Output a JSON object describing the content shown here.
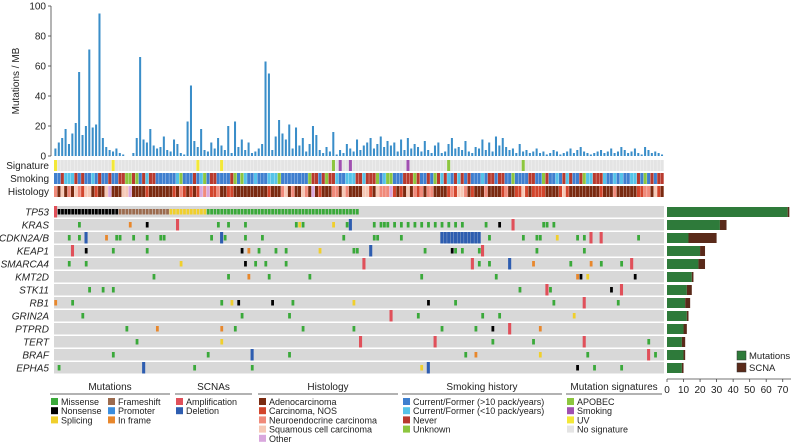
{
  "chart_data": {
    "type": "oncoprint",
    "n_samples": 180,
    "tmb": {
      "ylabel": "Mutations / MB",
      "ylim": [
        0,
        100
      ],
      "yticks": [
        0,
        20,
        40,
        60,
        80,
        100
      ],
      "values": [
        5,
        9,
        12,
        18,
        8,
        15,
        22,
        56,
        14,
        20,
        71,
        19,
        21,
        95,
        12,
        6,
        4,
        3,
        5,
        2,
        1,
        0,
        0,
        2,
        12,
        66,
        11,
        9,
        18,
        7,
        5,
        6,
        13,
        4,
        3,
        11,
        8,
        2,
        1,
        23,
        47,
        10,
        6,
        18,
        4,
        3,
        9,
        5,
        12,
        7,
        4,
        20,
        2,
        23,
        6,
        11,
        4,
        9,
        2,
        3,
        5,
        8,
        63,
        55,
        4,
        13,
        24,
        15,
        11,
        21,
        5,
        19,
        7,
        12,
        3,
        8,
        20,
        14,
        4,
        2,
        6,
        3,
        16,
        1,
        4,
        2,
        8,
        5,
        3,
        11,
        4,
        7,
        9,
        12,
        5,
        8,
        13,
        6,
        10,
        7,
        9,
        3,
        11,
        4,
        12,
        5,
        8,
        6,
        3,
        10,
        4,
        2,
        7,
        9,
        2,
        3,
        8,
        12,
        5,
        6,
        4,
        10,
        3,
        2,
        6,
        5,
        11,
        4,
        9,
        3,
        13,
        7,
        12,
        6,
        4,
        5,
        2,
        8,
        3,
        4,
        2,
        3,
        5,
        2,
        3,
        1,
        2,
        4,
        3,
        1,
        2,
        3,
        5,
        2,
        4,
        6,
        3,
        2,
        1,
        2,
        3,
        4,
        2,
        3,
        5,
        2,
        3,
        6,
        4,
        2,
        3,
        5,
        2,
        1,
        6,
        4,
        2,
        3,
        2,
        1
      ]
    },
    "tracks": [
      {
        "label": "Signature"
      },
      {
        "label": "Smoking"
      },
      {
        "label": "Histology"
      }
    ],
    "genes": [
      {
        "name": "TP53",
        "mutations": 73,
        "scna": 1
      },
      {
        "name": "KRAS",
        "mutations": 32,
        "scna": 4
      },
      {
        "name": "CDKN2A/B",
        "mutations": 13,
        "scna": 17
      },
      {
        "name": "KEAP1",
        "mutations": 20,
        "scna": 3
      },
      {
        "name": "SMARCA4",
        "mutations": 19,
        "scna": 4
      },
      {
        "name": "KMT2D",
        "mutations": 15,
        "scna": 1
      },
      {
        "name": "STK11",
        "mutations": 12,
        "scna": 3
      },
      {
        "name": "RB1",
        "mutations": 11,
        "scna": 3
      },
      {
        "name": "GRIN2A",
        "mutations": 12,
        "scna": 1
      },
      {
        "name": "PTPRD",
        "mutations": 10,
        "scna": 2
      },
      {
        "name": "TERT",
        "mutations": 9,
        "scna": 2
      },
      {
        "name": "BRAF",
        "mutations": 10,
        "scna": 1
      },
      {
        "name": "EPHA5",
        "mutations": 9,
        "scna": 1
      }
    ],
    "side_bar": {
      "xlim": [
        0,
        75
      ],
      "xticks": [
        0,
        10,
        20,
        30,
        40,
        50,
        60,
        70
      ],
      "legend": [
        "Mutations",
        "SCNA"
      ]
    },
    "legend_groups": [
      {
        "title": "Mutations",
        "items": [
          {
            "label": "Missense",
            "color": "#3aa93a"
          },
          {
            "label": "Frameshift",
            "color": "#9c6b4e"
          },
          {
            "label": "Nonsense",
            "color": "#000000"
          },
          {
            "label": "Promoter",
            "color": "#3b8ede"
          },
          {
            "label": "Splicing",
            "color": "#f0cf2c"
          },
          {
            "label": "In frame",
            "color": "#e8872c"
          }
        ]
      },
      {
        "title": "SCNAs",
        "items": [
          {
            "label": "Amplification",
            "color": "#e0505a"
          },
          {
            "label": "Deletion",
            "color": "#2e5db0"
          }
        ]
      },
      {
        "title": "Histology",
        "items": [
          {
            "label": "Adenocarcinoma",
            "color": "#7a2a10"
          },
          {
            "label": "Carcinoma, NOS",
            "color": "#d2452c"
          },
          {
            "label": "Neuroendocrine carcinoma",
            "color": "#f08a7a"
          },
          {
            "label": "Squamous cell carcinoma",
            "color": "#f6c9b6"
          },
          {
            "label": "Other",
            "color": "#d9a7dd"
          }
        ]
      },
      {
        "title": "Smoking history",
        "items": [
          {
            "label": "Current/Former (>10 pack/years)",
            "color": "#3f7fcf"
          },
          {
            "label": "Current/Former (<10 pack/years)",
            "color": "#55c3e8"
          },
          {
            "label": "Never",
            "color": "#b83a2e"
          },
          {
            "label": "Unknown",
            "color": "#8dc63f"
          }
        ]
      },
      {
        "title": "Mutation signatures",
        "items": [
          {
            "label": "APOBEC",
            "color": "#8dc63f"
          },
          {
            "label": "Smoking",
            "color": "#a050b0"
          },
          {
            "label": "UV",
            "color": "#f3e838"
          },
          {
            "label": "No signature",
            "color": "#e4e4e4"
          }
        ]
      }
    ],
    "colors": {
      "tmb_bar": "#3a8ec9",
      "grid_bg": "#d8d8d8",
      "bar_mutations": "#2e7a3a",
      "bar_scna": "#5a2a1a"
    }
  }
}
